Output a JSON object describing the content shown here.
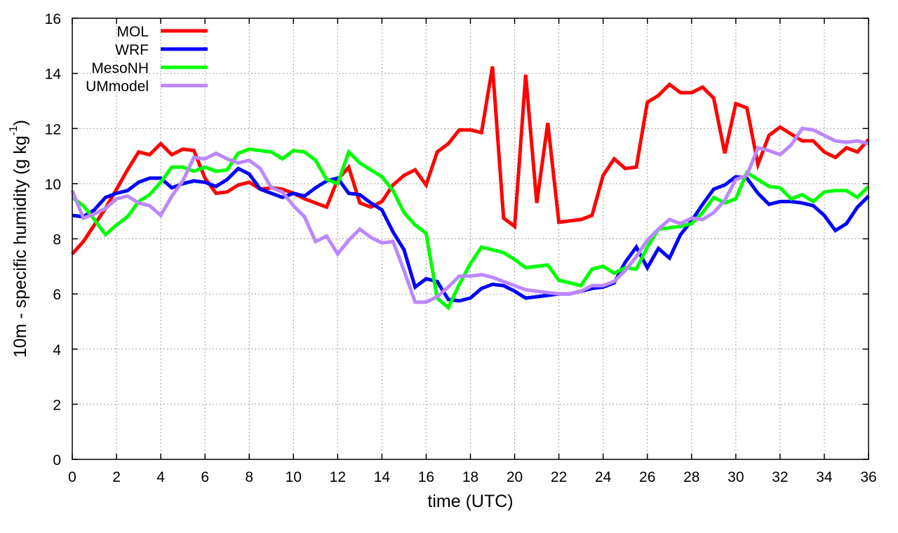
{
  "chart_data": {
    "type": "line",
    "xlabel": "time (UTC)",
    "ylabel": {
      "main": "10m - specific humidity (g kg",
      "sup": "-1",
      "close": ")"
    },
    "xlim": [
      0,
      36
    ],
    "ylim": [
      0,
      16
    ],
    "xticks": [
      0,
      2,
      4,
      6,
      8,
      10,
      12,
      14,
      16,
      18,
      20,
      22,
      24,
      26,
      28,
      30,
      32,
      34,
      36
    ],
    "yticks": [
      0,
      2,
      4,
      6,
      8,
      10,
      12,
      14,
      16
    ],
    "grid": true,
    "legend_position": "top-left",
    "series": [
      {
        "name": "MOL",
        "color": "#ff0000",
        "x": [
          0,
          0.5,
          1,
          1.5,
          2,
          2.5,
          3,
          3.5,
          4,
          4.5,
          5,
          5.5,
          6,
          6.5,
          7,
          7.5,
          8,
          8.5,
          9,
          9.5,
          10,
          10.5,
          11,
          11.5,
          12,
          12.5,
          13,
          13.5,
          14,
          14.5,
          15,
          15.5,
          16,
          16.5,
          17,
          17.5,
          18,
          18.5,
          19,
          19.5,
          20,
          20.5,
          21,
          21.5,
          22,
          22.5,
          23,
          23.5,
          24,
          24.5,
          25,
          25.5,
          26,
          26.5,
          27,
          27.5,
          28,
          28.5,
          29,
          29.5,
          30,
          30.5,
          31,
          31.5,
          32,
          32.5,
          33,
          33.5,
          34,
          34.5,
          35,
          35.5,
          36
        ],
        "y": [
          7.45,
          7.9,
          8.5,
          9.1,
          9.8,
          10.5,
          11.15,
          11.05,
          11.45,
          11.05,
          11.25,
          11.2,
          10.2,
          9.65,
          9.7,
          9.95,
          10.05,
          9.8,
          9.85,
          9.8,
          9.65,
          9.45,
          9.3,
          9.15,
          10.15,
          10.6,
          9.3,
          9.15,
          9.35,
          9.95,
          10.3,
          10.5,
          9.95,
          11.15,
          11.45,
          11.95,
          11.95,
          11.85,
          14.25,
          8.75,
          8.45,
          13.95,
          9.3,
          12.2,
          8.6,
          8.65,
          8.7,
          8.85,
          10.3,
          10.9,
          10.55,
          10.6,
          12.95,
          13.2,
          13.6,
          13.3,
          13.3,
          13.5,
          13.1,
          11.1,
          12.9,
          12.75,
          10.7,
          11.75,
          12.05,
          11.8,
          11.55,
          11.55,
          11.15,
          10.95,
          11.3,
          11.15,
          11.6
        ]
      },
      {
        "name": "WRF",
        "color": "#0000ff",
        "x": [
          0,
          0.5,
          1,
          1.5,
          2,
          2.5,
          3,
          3.5,
          4,
          4.5,
          5,
          5.5,
          6,
          6.5,
          7,
          7.5,
          8,
          8.5,
          9,
          9.5,
          10,
          10.5,
          11,
          11.5,
          12,
          12.5,
          13,
          13.5,
          14,
          14.5,
          15,
          15.5,
          16,
          16.5,
          17,
          17.5,
          18,
          18.5,
          19,
          19.5,
          20,
          20.5,
          21,
          21.5,
          22,
          22.5,
          23,
          23.5,
          24,
          24.5,
          25,
          25.5,
          26,
          26.5,
          27,
          27.5,
          28,
          28.5,
          29,
          29.5,
          30,
          30.5,
          31,
          31.5,
          32,
          32.5,
          33,
          33.5,
          34,
          34.5,
          35,
          35.5,
          36
        ],
        "y": [
          8.85,
          8.8,
          9.05,
          9.5,
          9.65,
          9.75,
          10.05,
          10.2,
          10.2,
          9.85,
          10.0,
          10.1,
          10.05,
          9.9,
          10.15,
          10.55,
          10.35,
          9.8,
          9.65,
          9.5,
          9.65,
          9.55,
          9.85,
          10.1,
          10.2,
          9.65,
          9.6,
          9.3,
          9.05,
          8.25,
          7.6,
          6.25,
          6.55,
          6.45,
          5.8,
          5.75,
          5.85,
          6.2,
          6.35,
          6.3,
          6.1,
          5.85,
          5.9,
          5.95,
          6.0,
          6.0,
          6.1,
          6.2,
          6.25,
          6.4,
          7.15,
          7.7,
          6.95,
          7.65,
          7.3,
          8.15,
          8.65,
          9.25,
          9.8,
          9.95,
          10.25,
          10.2,
          9.65,
          9.25,
          9.35,
          9.35,
          9.3,
          9.2,
          8.85,
          8.3,
          8.55,
          9.15,
          9.55
        ]
      },
      {
        "name": "MesoNH",
        "color": "#00ff00",
        "x": [
          0,
          0.5,
          1,
          1.5,
          2,
          2.5,
          3,
          3.5,
          4,
          4.5,
          5,
          5.5,
          6,
          6.5,
          7,
          7.5,
          8,
          8.5,
          9,
          9.5,
          10,
          10.5,
          11,
          11.5,
          12,
          12.5,
          13,
          13.5,
          14,
          14.5,
          15,
          15.5,
          16,
          16.5,
          17,
          17.5,
          18,
          18.5,
          19,
          19.5,
          20,
          20.5,
          21,
          21.5,
          22,
          22.5,
          23,
          23.5,
          24,
          24.5,
          25,
          25.5,
          26,
          26.5,
          27,
          27.5,
          28,
          28.5,
          29,
          29.5,
          30,
          30.5,
          31,
          31.5,
          32,
          32.5,
          33,
          33.5,
          34,
          34.5,
          35,
          35.5,
          36
        ],
        "y": [
          9.5,
          9.2,
          8.7,
          8.15,
          8.5,
          8.8,
          9.35,
          9.6,
          10.05,
          10.6,
          10.6,
          10.45,
          10.6,
          10.45,
          10.5,
          11.1,
          11.25,
          11.2,
          11.15,
          10.9,
          11.2,
          11.15,
          10.85,
          10.15,
          10.0,
          11.15,
          10.75,
          10.5,
          10.25,
          9.75,
          8.95,
          8.5,
          8.2,
          5.85,
          5.5,
          6.35,
          7.1,
          7.7,
          7.6,
          7.5,
          7.25,
          6.95,
          7.0,
          7.05,
          6.5,
          6.4,
          6.3,
          6.9,
          7.0,
          6.75,
          6.95,
          6.9,
          7.7,
          8.35,
          8.4,
          8.45,
          8.55,
          8.95,
          9.5,
          9.3,
          9.45,
          10.4,
          10.15,
          9.9,
          9.85,
          9.45,
          9.6,
          9.35,
          9.7,
          9.75,
          9.75,
          9.5,
          9.9
        ]
      },
      {
        "name": "UMmodel",
        "color": "#bb88ff",
        "x": [
          0,
          0.5,
          1,
          1.5,
          2,
          2.5,
          3,
          3.5,
          4,
          4.5,
          5,
          5.5,
          6,
          6.5,
          7,
          7.5,
          8,
          8.5,
          9,
          9.5,
          10,
          10.5,
          11,
          11.5,
          12,
          12.5,
          13,
          13.5,
          14,
          14.5,
          15,
          15.5,
          16,
          16.5,
          17,
          17.5,
          18,
          18.5,
          19,
          19.5,
          20,
          20.5,
          21,
          21.5,
          22,
          22.5,
          23,
          23.5,
          24,
          24.5,
          25,
          25.5,
          26,
          26.5,
          27,
          27.5,
          28,
          28.5,
          29,
          29.5,
          30,
          30.5,
          31,
          31.5,
          32,
          32.5,
          33,
          33.5,
          34,
          34.5,
          35,
          35.5,
          36
        ],
        "y": [
          9.75,
          8.75,
          8.9,
          9.1,
          9.45,
          9.55,
          9.3,
          9.2,
          8.85,
          9.55,
          10.1,
          10.95,
          10.9,
          11.1,
          10.9,
          10.75,
          10.85,
          10.55,
          9.85,
          9.7,
          9.2,
          8.8,
          7.9,
          8.1,
          7.45,
          7.95,
          8.35,
          8.05,
          7.85,
          7.9,
          6.85,
          5.7,
          5.7,
          5.9,
          6.25,
          6.65,
          6.65,
          6.7,
          6.6,
          6.45,
          6.3,
          6.15,
          6.1,
          6.05,
          6.0,
          6.0,
          6.1,
          6.3,
          6.3,
          6.45,
          6.85,
          7.35,
          7.95,
          8.35,
          8.7,
          8.55,
          8.75,
          8.7,
          8.95,
          9.4,
          10.15,
          10.3,
          11.3,
          11.2,
          11.05,
          11.4,
          12.0,
          11.95,
          11.75,
          11.55,
          11.5,
          11.55,
          11.45
        ]
      }
    ]
  }
}
